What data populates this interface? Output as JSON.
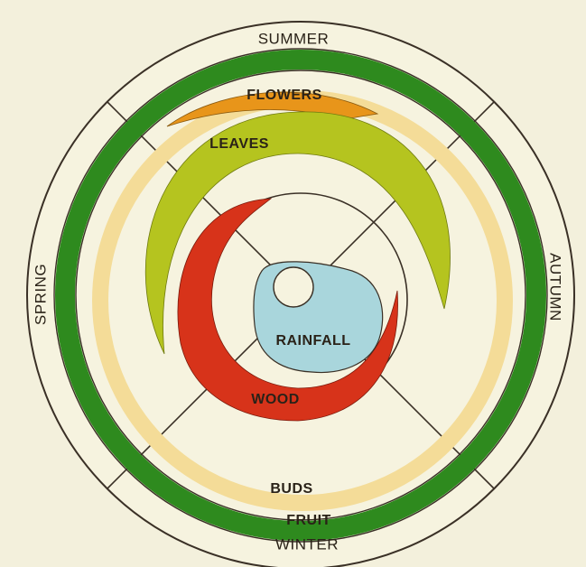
{
  "seasons": {
    "top": "SUMMER",
    "right": "AUTUMN",
    "bottom": "WINTER",
    "left": "SPRING"
  },
  "bands": {
    "flowers": "FLOWERS",
    "leaves": "LEAVES",
    "rainfall": "RAINFALL",
    "wood": "WOOD",
    "buds": "BUDS",
    "fruit": "FRUIT"
  }
}
